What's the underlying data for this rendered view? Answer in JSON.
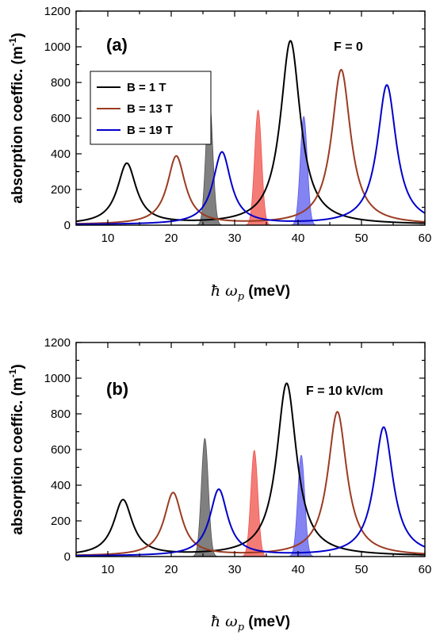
{
  "chart_data": [
    {
      "type": "line",
      "panel_label": "(a)",
      "annotation": "F = 0",
      "xlabel": "ħ ω",
      "xlabel_sub": "p",
      "xlabel_unit": " (meV)",
      "ylabel": "absorption coeffic. (m",
      "ylabel_sup": "-1",
      "ylabel_end": ")",
      "xlim": [
        5,
        60
      ],
      "ylim": [
        0,
        1200
      ],
      "xticks": [
        10,
        20,
        30,
        40,
        50,
        60
      ],
      "yticks": [
        0,
        200,
        400,
        600,
        800,
        1000,
        1200
      ],
      "legend_position": "upper-left",
      "series": [
        {
          "name": "B = 1 T",
          "color": "#000000",
          "peaks": [
            {
              "x": 13.0,
              "y": 340,
              "w": 1.8
            },
            {
              "x": 38.8,
              "y": 1030,
              "w": 1.9
            }
          ]
        },
        {
          "name": "B = 13 T",
          "color": "#9b3b22",
          "peaks": [
            {
              "x": 20.8,
              "y": 382,
              "w": 1.7
            },
            {
              "x": 46.8,
              "y": 868,
              "w": 1.8
            }
          ]
        },
        {
          "name": "B = 19 T",
          "color": "#0000cc",
          "peaks": [
            {
              "x": 28.0,
              "y": 405,
              "w": 1.7
            },
            {
              "x": 54.0,
              "y": 782,
              "w": 1.8
            }
          ]
        }
      ],
      "filled_peaks": [
        {
          "color": "#555555",
          "x": 26.0,
          "y": 710,
          "w": 0.55
        },
        {
          "color": "#f0504a",
          "x": 33.7,
          "y": 645,
          "w": 0.55
        },
        {
          "color": "#5a5aee",
          "x": 40.9,
          "y": 610,
          "w": 0.55
        }
      ]
    },
    {
      "type": "line",
      "panel_label": "(b)",
      "annotation": "F = 10 kV/cm",
      "xlabel": "ħ ω",
      "xlabel_sub": "p",
      "xlabel_unit": " (meV)",
      "ylabel": "absorption coeffic. (m",
      "ylabel_sup": "-1",
      "ylabel_end": ")",
      "xlim": [
        5,
        60
      ],
      "ylim": [
        0,
        1200
      ],
      "xticks": [
        10,
        20,
        30,
        40,
        50,
        60
      ],
      "yticks": [
        0,
        200,
        400,
        600,
        800,
        1000,
        1200
      ],
      "series": [
        {
          "name": "",
          "color": "#000000",
          "peaks": [
            {
              "x": 12.4,
              "y": 312,
              "w": 1.8
            },
            {
              "x": 38.2,
              "y": 968,
              "w": 1.9
            }
          ]
        },
        {
          "name": "",
          "color": "#9b3b22",
          "peaks": [
            {
              "x": 20.3,
              "y": 353,
              "w": 1.7
            },
            {
              "x": 46.2,
              "y": 808,
              "w": 1.8
            }
          ]
        },
        {
          "name": "",
          "color": "#0000cc",
          "peaks": [
            {
              "x": 27.5,
              "y": 372,
              "w": 1.7
            },
            {
              "x": 53.5,
              "y": 722,
              "w": 1.8
            }
          ]
        }
      ],
      "filled_peaks": [
        {
          "color": "#555555",
          "x": 25.3,
          "y": 662,
          "w": 0.55
        },
        {
          "color": "#f0504a",
          "x": 33.1,
          "y": 595,
          "w": 0.55
        },
        {
          "color": "#5a5aee",
          "x": 40.5,
          "y": 568,
          "w": 0.55
        }
      ]
    }
  ]
}
